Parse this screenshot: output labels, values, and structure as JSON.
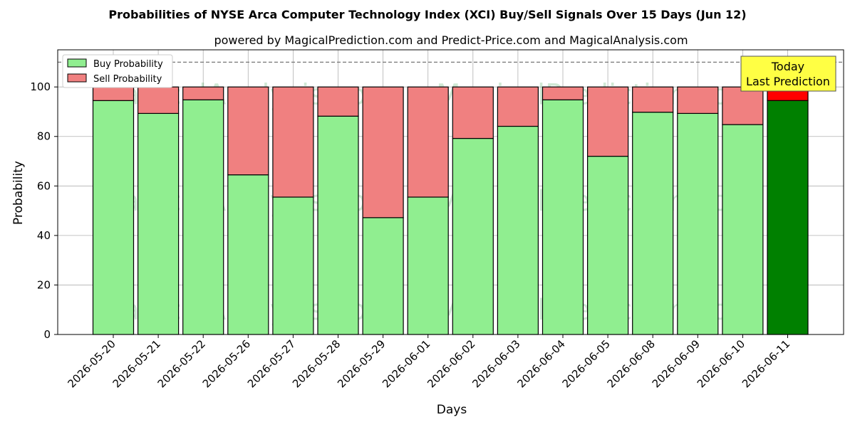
{
  "chart_data": {
    "type": "bar",
    "stacked": true,
    "title": "Probabilities of NYSE Arca Computer Technology Index (XCI) Buy/Sell Signals Over 15 Days (Jun 12)",
    "subtitle": "powered by MagicalPrediction.com and Predict-Price.com and MagicalAnalysis.com",
    "xlabel": "Days",
    "ylabel": "Probability",
    "ylim": [
      0,
      115
    ],
    "yticks": [
      "0",
      "20",
      "40",
      "60",
      "80",
      "100"
    ],
    "grid": true,
    "legend_position": "top-left",
    "categories": [
      "2026-05-20",
      "2026-05-21",
      "2026-05-22",
      "2026-05-26",
      "2026-05-27",
      "2026-05-28",
      "2026-05-29",
      "2026-06-01",
      "2026-06-02",
      "2026-06-03",
      "2026-06-04",
      "2026-06-05",
      "2026-06-08",
      "2026-06-09",
      "2026-06-10",
      "2026-06-11"
    ],
    "series": [
      {
        "name": "Buy Probability",
        "color": "#90ee90",
        "values": [
          94.5,
          89.3,
          94.8,
          64.5,
          55.5,
          88.2,
          47.2,
          55.5,
          79.2,
          84.1,
          94.8,
          72.0,
          89.8,
          89.3,
          84.8,
          94.5
        ]
      },
      {
        "name": "Sell Probability",
        "color": "#f08080",
        "values": [
          5.5,
          10.7,
          5.2,
          35.5,
          44.5,
          11.8,
          52.8,
          44.5,
          20.8,
          15.9,
          5.2,
          28.0,
          10.2,
          10.7,
          15.2,
          5.5
        ]
      }
    ],
    "highlight": {
      "index": 15,
      "buy_color": "#008000",
      "sell_color": "#ff0000"
    },
    "reference_line": {
      "y": 110,
      "style": "dashed"
    },
    "annotation": {
      "line1": "Today",
      "line2": "Last Prediction",
      "color": "#ffff44"
    },
    "watermarks": [
      "MagicalAnalysis.com",
      "MagicalPrediction.com"
    ]
  }
}
